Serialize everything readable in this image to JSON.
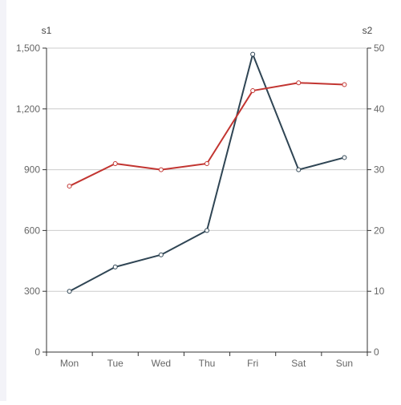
{
  "chart_data": {
    "type": "line",
    "categories": [
      "Mon",
      "Tue",
      "Wed",
      "Thu",
      "Fri",
      "Sat",
      "Sun"
    ],
    "y_left": {
      "name": "s1",
      "range": [
        0,
        1500
      ],
      "ticks": [
        0,
        300,
        600,
        900,
        1200,
        1500
      ],
      "tick_labels": [
        "0",
        "300",
        "600",
        "900",
        "1,200",
        "1,500"
      ]
    },
    "y_right": {
      "name": "s2",
      "range": [
        0,
        50
      ],
      "ticks": [
        0,
        10,
        20,
        30,
        40,
        50
      ],
      "tick_labels": [
        "0",
        "10",
        "20",
        "30",
        "40",
        "50"
      ]
    },
    "series": [
      {
        "name": "s1",
        "axis": "left",
        "color": "#2f4554",
        "values": [
          300,
          420,
          480,
          600,
          1470,
          900,
          960
        ]
      },
      {
        "name": "s2",
        "axis": "right",
        "color": "#c23531",
        "values": [
          27.3,
          31,
          30,
          31,
          43,
          44.3,
          44
        ]
      }
    ],
    "grid": true,
    "legend": "none"
  }
}
